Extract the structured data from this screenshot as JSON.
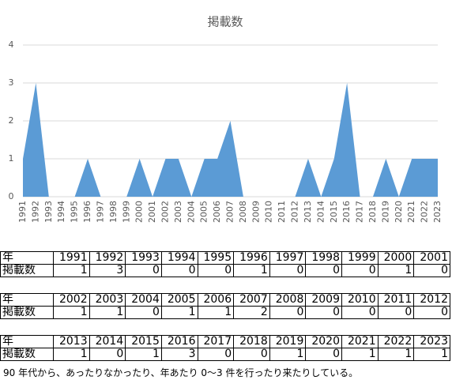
{
  "chart_data": {
    "type": "area",
    "title": "掲載数",
    "categories": [
      "1991",
      "1992",
      "1993",
      "1994",
      "1995",
      "1996",
      "1997",
      "1998",
      "1999",
      "2000",
      "2001",
      "2002",
      "2003",
      "2004",
      "2005",
      "2006",
      "2007",
      "2008",
      "2009",
      "2010",
      "2011",
      "2012",
      "2013",
      "2014",
      "2015",
      "2016",
      "2017",
      "2018",
      "2019",
      "2020",
      "2021",
      "2022",
      "2023"
    ],
    "values": [
      1,
      3,
      0,
      0,
      0,
      1,
      0,
      0,
      0,
      1,
      0,
      1,
      1,
      0,
      1,
      1,
      2,
      0,
      0,
      0,
      0,
      0,
      1,
      0,
      1,
      3,
      0,
      0,
      1,
      0,
      1,
      1,
      1
    ],
    "color": "#5b9bd5",
    "ylim": [
      0,
      4
    ],
    "yticks": [
      0,
      1,
      2,
      3,
      4
    ],
    "grid": true
  },
  "tables": [
    {
      "rows": [
        [
          "年",
          "1991",
          "1992",
          "1993",
          "1994",
          "1995",
          "1996",
          "1997",
          "1998",
          "1999",
          "2000",
          "2001"
        ],
        [
          "掲載数",
          "1",
          "3",
          "0",
          "0",
          "0",
          "1",
          "0",
          "0",
          "0",
          "1",
          "0"
        ]
      ]
    },
    {
      "rows": [
        [
          "年",
          "2002",
          "2003",
          "2004",
          "2005",
          "2006",
          "2007",
          "2008",
          "2009",
          "2010",
          "2011",
          "2012"
        ],
        [
          "掲載数",
          "1",
          "1",
          "0",
          "1",
          "1",
          "2",
          "0",
          "0",
          "0",
          "0",
          "0"
        ]
      ]
    },
    {
      "rows": [
        [
          "年",
          "2013",
          "2014",
          "2015",
          "2016",
          "2017",
          "2018",
          "2019",
          "2020",
          "2021",
          "2022",
          "2023"
        ],
        [
          "掲載数",
          "1",
          "0",
          "1",
          "3",
          "0",
          "0",
          "1",
          "0",
          "1",
          "1",
          "1"
        ]
      ]
    }
  ],
  "note": "90 年代から、あったりなかったり、年あたり 0～3 件を行ったり来たりしている。"
}
